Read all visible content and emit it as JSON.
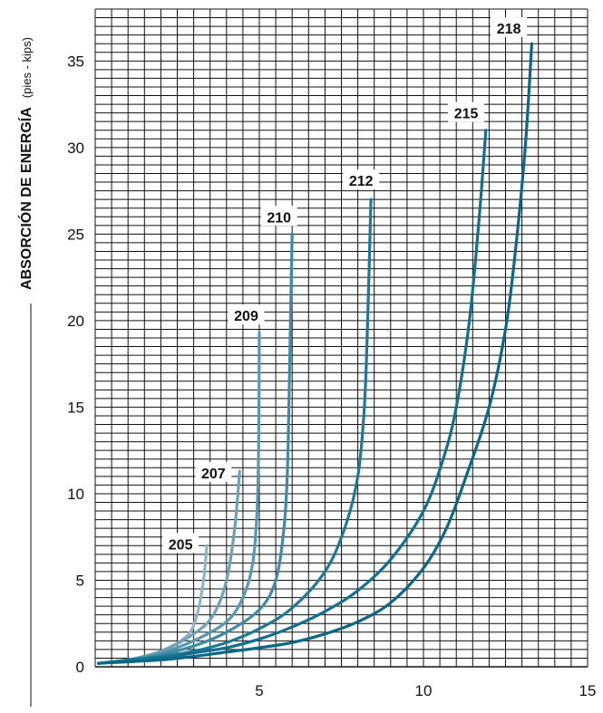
{
  "chart_data": {
    "type": "line",
    "title": "",
    "ylabel": "ABSORCIÓN DE ENERGÍA",
    "ylabel_unit": "(pies - kips)",
    "xlabel": "",
    "xlim": [
      0,
      15
    ],
    "ylim": [
      0,
      38
    ],
    "xticks": [
      5,
      10,
      15
    ],
    "yticks": [
      0,
      5,
      10,
      15,
      20,
      25,
      30,
      35
    ],
    "grid": true,
    "series": [
      {
        "name": "205",
        "color": "#8fb6c8",
        "label_at": [
          2.6,
          7.1
        ],
        "points": [
          [
            0.1,
            0.2
          ],
          [
            1,
            0.4
          ],
          [
            2,
            0.9
          ],
          [
            2.8,
            1.8
          ],
          [
            3.1,
            3
          ],
          [
            3.3,
            5
          ],
          [
            3.4,
            7
          ]
        ]
      },
      {
        "name": "207",
        "color": "#6fa1b7",
        "label_at": [
          3.6,
          11.2
        ],
        "points": [
          [
            0.1,
            0.2
          ],
          [
            1,
            0.4
          ],
          [
            2,
            0.9
          ],
          [
            3,
            1.9
          ],
          [
            3.6,
            3
          ],
          [
            4,
            5
          ],
          [
            4.25,
            8
          ],
          [
            4.4,
            11.3
          ]
        ]
      },
      {
        "name": "209",
        "color": "#5a97b0",
        "label_at": [
          4.6,
          20.3
        ],
        "points": [
          [
            0.1,
            0.2
          ],
          [
            1,
            0.4
          ],
          [
            2,
            0.8
          ],
          [
            3,
            1.5
          ],
          [
            4,
            2.6
          ],
          [
            4.5,
            4
          ],
          [
            4.8,
            6
          ],
          [
            4.93,
            9
          ],
          [
            4.98,
            13
          ],
          [
            5.0,
            19.3
          ]
        ]
      },
      {
        "name": "210",
        "color": "#3f8aa5",
        "label_at": [
          5.6,
          26
        ],
        "points": [
          [
            0.1,
            0.2
          ],
          [
            1,
            0.4
          ],
          [
            2,
            0.7
          ],
          [
            3,
            1.2
          ],
          [
            4,
            2
          ],
          [
            5,
            3.3
          ],
          [
            5.5,
            5
          ],
          [
            5.75,
            8
          ],
          [
            5.85,
            11
          ],
          [
            5.9,
            15
          ],
          [
            5.95,
            20
          ],
          [
            6.0,
            25
          ]
        ]
      },
      {
        "name": "212",
        "color": "#1f7995",
        "label_at": [
          8.1,
          28.1
        ],
        "points": [
          [
            0.1,
            0.2
          ],
          [
            2,
            0.6
          ],
          [
            3,
            0.9
          ],
          [
            4,
            1.4
          ],
          [
            5,
            2.2
          ],
          [
            6,
            3.4
          ],
          [
            7,
            5.5
          ],
          [
            7.6,
            8
          ],
          [
            8,
            11
          ],
          [
            8.2,
            15
          ],
          [
            8.3,
            20
          ],
          [
            8.4,
            27
          ]
        ]
      },
      {
        "name": "215",
        "color": "#11708e",
        "label_at": [
          11.3,
          32
        ],
        "points": [
          [
            0.1,
            0.2
          ],
          [
            2,
            0.5
          ],
          [
            3,
            0.8
          ],
          [
            4,
            1.1
          ],
          [
            5,
            1.6
          ],
          [
            6,
            2.3
          ],
          [
            7,
            3.2
          ],
          [
            8,
            4.4
          ],
          [
            9,
            6.2
          ],
          [
            10,
            9
          ],
          [
            10.6,
            12
          ],
          [
            11,
            15
          ],
          [
            11.4,
            20
          ],
          [
            11.7,
            26
          ],
          [
            11.9,
            31
          ]
        ]
      },
      {
        "name": "218",
        "color": "#0a6886",
        "label_at": [
          12.6,
          36.9
        ],
        "points": [
          [
            0.1,
            0.2
          ],
          [
            2,
            0.4
          ],
          [
            3,
            0.6
          ],
          [
            4,
            0.85
          ],
          [
            5,
            1.1
          ],
          [
            6,
            1.4
          ],
          [
            7,
            1.9
          ],
          [
            8,
            2.6
          ],
          [
            9,
            3.7
          ],
          [
            10,
            5.7
          ],
          [
            10.7,
            8
          ],
          [
            11.3,
            11
          ],
          [
            12,
            15
          ],
          [
            12.5,
            19.5
          ],
          [
            12.8,
            24
          ],
          [
            13.1,
            30
          ],
          [
            13.3,
            36
          ]
        ]
      }
    ]
  }
}
